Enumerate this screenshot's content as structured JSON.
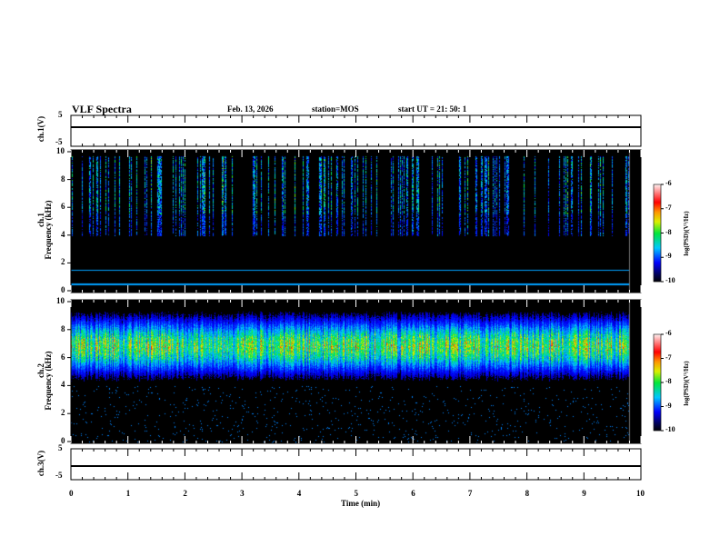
{
  "header": {
    "title": "VLF Spectra",
    "date": "Feb. 13, 2026",
    "station": "station=MOS",
    "start": "start  UT =   21: 50: 1"
  },
  "chart_data": [
    {
      "type": "line",
      "name": "ch.1 waveform",
      "ylabel": "ch.1(V)",
      "ylim": [
        -5,
        5
      ],
      "yticks": [
        "5",
        "-5"
      ],
      "level": 0
    },
    {
      "type": "heatmap",
      "name": "ch.1 spectrogram",
      "ylabel": "ch.1\nFrequency (kHz)",
      "ylabel1": "ch.1",
      "ylabel2": "Frequency (kHz)",
      "ylim": [
        0,
        10
      ],
      "yticks": [
        "0",
        "2",
        "4",
        "6",
        "8",
        "10"
      ],
      "colorbar": {
        "label": "log(PSD)(V²/Hz)",
        "range": [
          -10,
          -6
        ],
        "ticks": [
          "-6",
          "-7",
          "-8",
          "-9",
          "-10"
        ]
      },
      "data_end_min": 9.8
    },
    {
      "type": "heatmap",
      "name": "ch.2 spectrogram",
      "ylabel1": "ch.2",
      "ylabel2": "Frequency (kHz)",
      "ylim": [
        0,
        10
      ],
      "yticks": [
        "0",
        "2",
        "4",
        "6",
        "8",
        "10"
      ],
      "colorbar": {
        "label": "log(PSD)(V²/Hz)",
        "range": [
          -10,
          -6
        ],
        "ticks": [
          "-6",
          "-7",
          "-8",
          "-9",
          "-10"
        ]
      },
      "data_end_min": 9.8
    },
    {
      "type": "line",
      "name": "ch.3 waveform",
      "ylabel": "ch.3(V)",
      "ylim": [
        -5,
        5
      ],
      "yticks": [
        "5",
        "-5"
      ],
      "level": 0
    }
  ],
  "xaxis": {
    "label": "Time  (min)",
    "range": [
      0,
      10
    ],
    "ticks": [
      "0",
      "1",
      "2",
      "3",
      "4",
      "5",
      "6",
      "7",
      "8",
      "9",
      "10"
    ]
  }
}
